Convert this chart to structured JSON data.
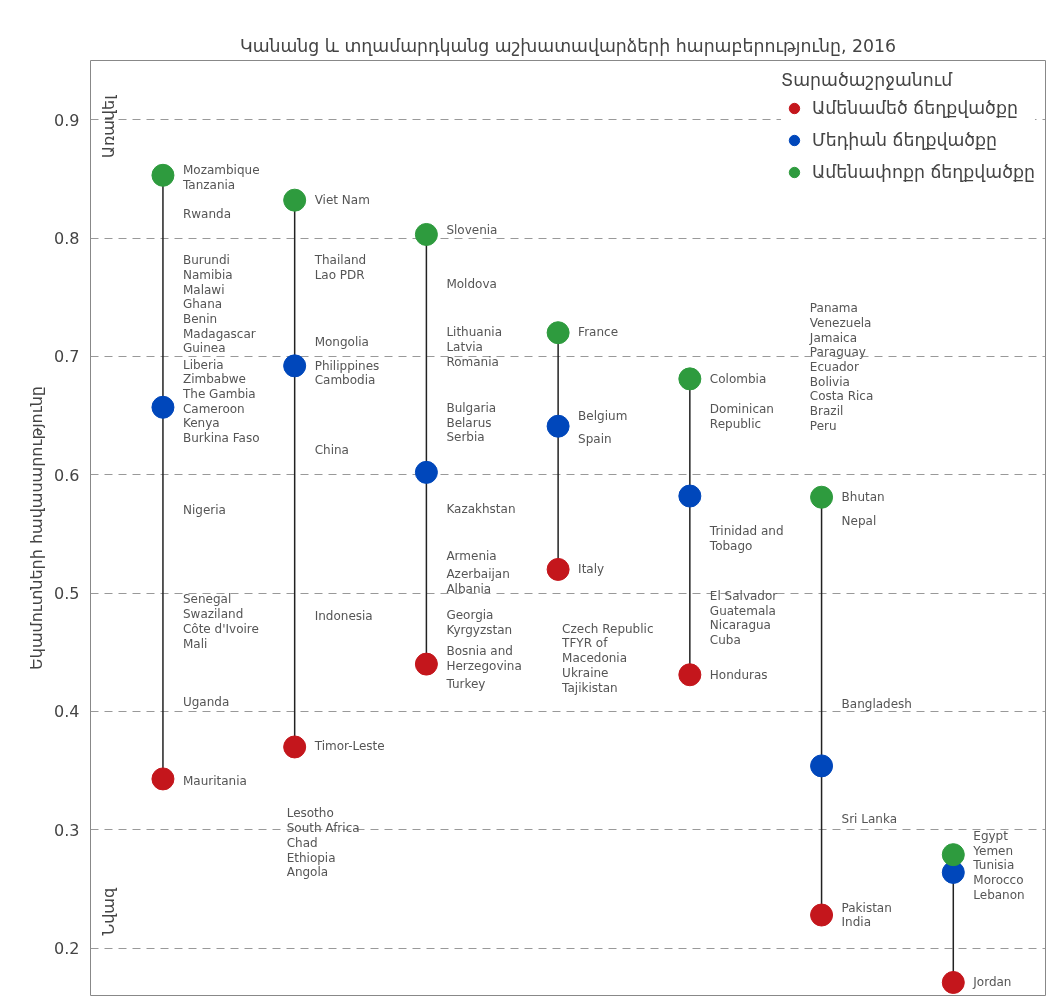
{
  "chart_data": {
    "type": "scatter",
    "title": "Կանանց և տղամարդկանց աշխատավարձերի հարաբերությունը, 2016",
    "ylabel": "Եկամուտների հավասարությունը",
    "legend_title": "Տարածաշրջանում",
    "categories": [
      null,
      null,
      null,
      null,
      null,
      null,
      null
    ],
    "ylim": [
      0.16,
      0.95
    ],
    "yticks": [
      0.2,
      0.3,
      0.4,
      0.5,
      0.6,
      0.7,
      0.8,
      0.9
    ],
    "tick_labels": "y",
    "grid": "y",
    "legend": "top right",
    "marker": "circle",
    "series": [
      {
        "name": "Ամենամեծ ճեղքվածքը",
        "color": "#c4161c",
        "values": [
          0.343,
          0.37,
          0.44,
          0.52,
          0.431,
          0.228,
          0.171
        ]
      },
      {
        "name": "Մեդիան ճեղքվածքը",
        "color": "#0047bb",
        "values": [
          0.657,
          0.692,
          0.602,
          0.641,
          0.582,
          0.354,
          0.264
        ]
      },
      {
        "name": "Ամենափոքր ճեղքվածքը",
        "color": "#2e9b3e",
        "values": [
          0.853,
          0.832,
          0.803,
          0.72,
          0.681,
          0.581,
          0.279
        ]
      }
    ],
    "annotations": [
      "Առավել",
      "Նվազ",
      "Mozambique\nTanzania",
      "Rwanda",
      "Burundi\nNamibia\nMalawi\nGhana\nBenin\nMadagascar\nGuinea",
      "Liberia\nZimbabwe\nThe Gambia\nCameroon\nKenya\nBurkina Faso",
      "Nigeria",
      "Senegal\nSwaziland\nCôte d'Ivoire\nMali",
      "Uganda",
      "Mauritania",
      "Viet Nam",
      "Thailand\nLao PDR",
      "Mongolia",
      "Philippines\nCambodia",
      "China",
      "Indonesia",
      "Timor-Leste",
      "Lesotho\nSouth Africa\nChad\nEthiopia\nAngola",
      "Slovenia",
      "Moldova",
      "Lithuania\nLatvia\nRomania",
      "Bulgaria\nBelarus\nSerbia",
      "Kazakhstan",
      "Armenia",
      "Azerbaijan\nAlbania",
      "Georgia\nKyrgyzstan",
      "Bosnia and\n   Herzegovina",
      "Turkey",
      "France",
      "Belgium",
      "Spain",
      "Italy",
      "Czech Republic\nTFYR of\n     Macedonia\nUkraine\nTajikistan",
      "Colombia",
      "Dominican\n  Republic",
      "Trinidad and\n  Tobago",
      "El Salvador\nGuatemala\nNicaragua\nCuba",
      "Honduras",
      "Panama\nVenezuela\nJamaica\nParaguay\nEcuador\nBolivia\nCosta Rica\nBrazil\nPeru",
      "Bhutan",
      "Nepal",
      "Bangladesh",
      "Sri Lanka",
      "Pakistan\nIndia",
      "Egypt\nYemen\nTunisia\nMorocco\nLebanon",
      "Jordan"
    ]
  }
}
